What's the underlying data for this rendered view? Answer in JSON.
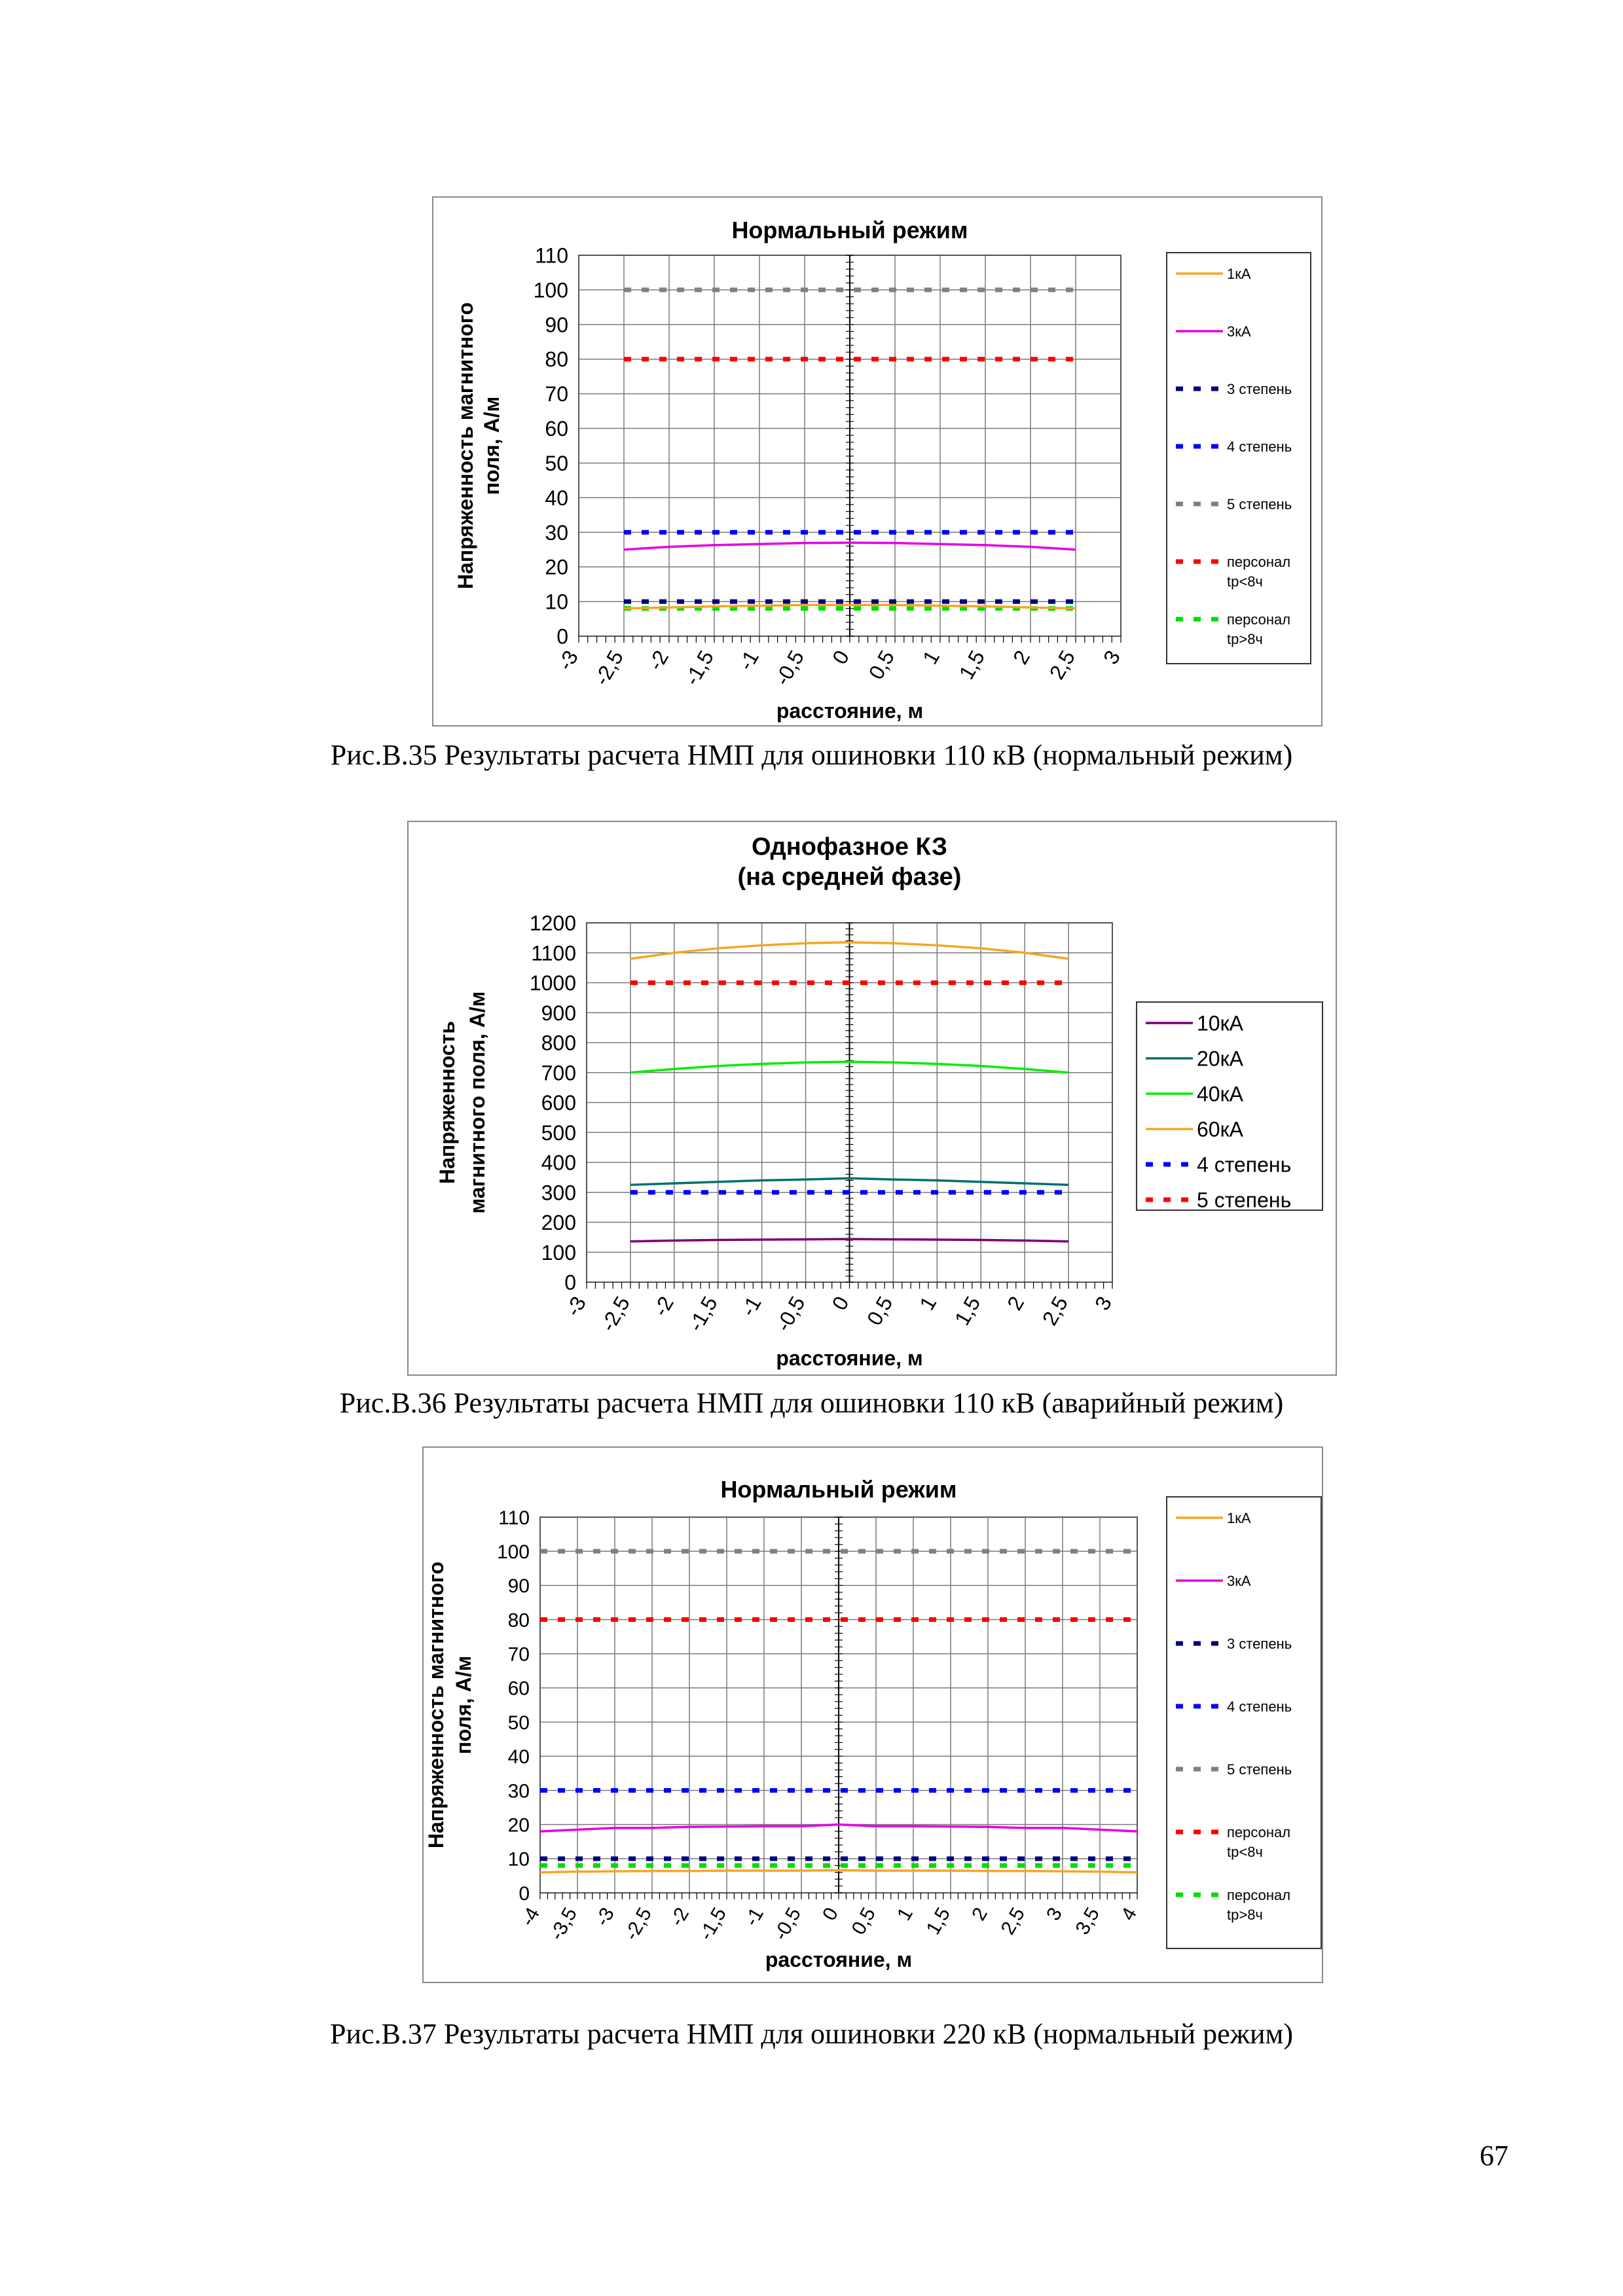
{
  "captions": [
    "Рис.В.35 Результаты расчета НМП для ошиновки 110 кВ (нормальный режим)",
    "Рис.В.36 Результаты расчета НМП для ошиновки 110 кВ (аварийный режим)",
    "Рис.В.37 Результаты расчета НМП для ошиновки 220 кВ (нормальный режим)"
  ],
  "page_number": "67",
  "chart_data": [
    {
      "type": "line",
      "title": [
        "Нормальный режим"
      ],
      "xlabel": "расстояние, м",
      "ylabel": [
        "Напряженность магнитного",
        "поля, А/м"
      ],
      "xlim": [
        -3,
        3
      ],
      "ylim": [
        0,
        110
      ],
      "x_ticks": [
        "-3",
        "-2,5",
        "-2",
        "-1,5",
        "-1",
        "-0,5",
        "0",
        "0,5",
        "1",
        "1,5",
        "2",
        "2,5",
        "3"
      ],
      "y_ticks": [
        "0",
        "10",
        "20",
        "30",
        "40",
        "50",
        "60",
        "70",
        "80",
        "90",
        "100",
        "110"
      ],
      "grid": true,
      "legend": "right",
      "series": [
        {
          "name": "1кА",
          "color": "#f5a623",
          "dash": false,
          "x": [
            -2.5,
            -2,
            -1.5,
            -1,
            -0.5,
            0,
            0.5,
            1,
            1.5,
            2,
            2.5
          ],
          "values": [
            8,
            8.3,
            8.6,
            8.8,
            9,
            9,
            9,
            8.8,
            8.6,
            8.3,
            8
          ]
        },
        {
          "name": "3кА",
          "color": "#e600e6",
          "dash": false,
          "x": [
            -2.5,
            -2,
            -1.5,
            -1,
            -0.5,
            0,
            0.5,
            1,
            1.5,
            2,
            2.5
          ],
          "values": [
            25,
            25.8,
            26.3,
            26.6,
            26.9,
            27,
            26.9,
            26.6,
            26.3,
            25.8,
            25
          ]
        },
        {
          "name": "3 степень",
          "color": "#00007a",
          "dash": true,
          "x": [
            -2.5,
            2.5
          ],
          "values": [
            10,
            10
          ]
        },
        {
          "name": "4 степень",
          "color": "#0000ff",
          "dash": true,
          "x": [
            -2.5,
            2.5
          ],
          "values": [
            30,
            30
          ]
        },
        {
          "name": "5 степень",
          "color": "#808080",
          "dash": true,
          "x": [
            -2.5,
            2.5
          ],
          "values": [
            100,
            100
          ]
        },
        {
          "name": "персонал tр<8ч",
          "color": "#ff0000",
          "dash": true,
          "x": [
            -2.5,
            2.5
          ],
          "values": [
            80,
            80
          ]
        },
        {
          "name": "персонал tр>8ч",
          "color": "#00dd00",
          "dash": true,
          "x": [
            -2.5,
            2.5
          ],
          "values": [
            8,
            8
          ]
        }
      ]
    },
    {
      "type": "line",
      "title": [
        "Однофазное КЗ",
        "(на средней фазе)"
      ],
      "xlabel": "расстояние, м",
      "ylabel": [
        "Напряженность",
        "магнитного поля, А/м"
      ],
      "xlim": [
        -3,
        3
      ],
      "ylim": [
        0,
        1200
      ],
      "x_ticks": [
        "-3",
        "-2,5",
        "-2",
        "-1,5",
        "-1",
        "-0,5",
        "0",
        "0,5",
        "1",
        "1,5",
        "2",
        "2,5",
        "3"
      ],
      "y_ticks": [
        "0",
        "100",
        "200",
        "300",
        "400",
        "500",
        "600",
        "700",
        "800",
        "900",
        "1000",
        "1100",
        "1200"
      ],
      "grid": true,
      "legend": "right",
      "series": [
        {
          "name": "10кА",
          "color": "#7a007a",
          "dash": false,
          "x": [
            -2.5,
            -2,
            -1.5,
            -1,
            -0.5,
            0,
            0.5,
            1,
            1.5,
            2,
            2.5
          ],
          "values": [
            136,
            139,
            141,
            142,
            143,
            144,
            143,
            142,
            141,
            139,
            136
          ]
        },
        {
          "name": "20кА",
          "color": "#007070",
          "dash": false,
          "x": [
            -2.5,
            -2,
            -1.5,
            -1,
            -0.5,
            0,
            0.5,
            1,
            1.5,
            2,
            2.5
          ],
          "values": [
            325,
            330,
            335,
            340,
            343,
            347,
            343,
            340,
            335,
            330,
            325
          ]
        },
        {
          "name": "40кА",
          "color": "#00ee00",
          "dash": false,
          "x": [
            -2.5,
            -2,
            -1.5,
            -1,
            -0.5,
            0,
            0.5,
            1,
            1.5,
            2,
            2.5
          ],
          "values": [
            700,
            712,
            722,
            729,
            734,
            736,
            734,
            729,
            722,
            712,
            700
          ]
        },
        {
          "name": "60кА",
          "color": "#f5a623",
          "dash": false,
          "x": [
            -2.5,
            -2,
            -1.5,
            -1,
            -0.5,
            0,
            0.5,
            1,
            1.5,
            2,
            2.5
          ],
          "values": [
            1080,
            1100,
            1115,
            1125,
            1132,
            1135,
            1132,
            1125,
            1115,
            1100,
            1080
          ]
        },
        {
          "name": "4 степень",
          "color": "#0000ff",
          "dash": true,
          "x": [
            -2.5,
            2.5
          ],
          "values": [
            300,
            300
          ]
        },
        {
          "name": "5 степень",
          "color": "#ff0000",
          "dash": true,
          "x": [
            -2.5,
            2.5
          ],
          "values": [
            1000,
            1000
          ]
        }
      ]
    },
    {
      "type": "line",
      "title": [
        "Нормальный режим"
      ],
      "xlabel": "расстояние, м",
      "ylabel": [
        "Напряженность магнитного",
        "поля, А/м"
      ],
      "xlim": [
        -4,
        4
      ],
      "ylim": [
        0,
        110
      ],
      "x_ticks": [
        "-4",
        "-3,5",
        "-3",
        "-2,5",
        "-2",
        "-1,5",
        "-1",
        "-0,5",
        "0",
        "0,5",
        "1",
        "1,5",
        "2",
        "2,5",
        "3",
        "3,5",
        "4"
      ],
      "y_ticks": [
        "0",
        "10",
        "20",
        "30",
        "40",
        "50",
        "60",
        "70",
        "80",
        "90",
        "100",
        "110"
      ],
      "grid": true,
      "legend": "right",
      "series": [
        {
          "name": "1кА",
          "color": "#f5a623",
          "dash": false,
          "x": [
            -4,
            -3.5,
            -3,
            -2.5,
            -2,
            -1.5,
            -1,
            -0.5,
            0,
            0.5,
            1,
            1.5,
            2,
            2.5,
            3,
            3.5,
            4
          ],
          "values": [
            6,
            6.2,
            6.3,
            6.4,
            6.4,
            6.5,
            6.5,
            6.5,
            6.6,
            6.5,
            6.5,
            6.5,
            6.4,
            6.4,
            6.3,
            6.2,
            6
          ]
        },
        {
          "name": "3кА",
          "color": "#e600e6",
          "dash": false,
          "x": [
            -4,
            -3.5,
            -3,
            -2.5,
            -2,
            -1.5,
            -1,
            -0.5,
            0,
            0.5,
            1,
            1.5,
            2,
            2.5,
            3,
            3.5,
            4
          ],
          "values": [
            18,
            18.5,
            19,
            19,
            19.3,
            19.4,
            19.5,
            19.5,
            20,
            19.5,
            19.5,
            19.4,
            19.3,
            19,
            19,
            18.5,
            18
          ]
        },
        {
          "name": "3 степень",
          "color": "#00007a",
          "dash": true,
          "x": [
            -4,
            4
          ],
          "values": [
            10,
            10
          ]
        },
        {
          "name": "4 степень",
          "color": "#0000ff",
          "dash": true,
          "x": [
            -4,
            4
          ],
          "values": [
            30,
            30
          ]
        },
        {
          "name": "5 степень",
          "color": "#808080",
          "dash": true,
          "x": [
            -4,
            4
          ],
          "values": [
            100,
            100
          ]
        },
        {
          "name": "персонал tр<8ч",
          "color": "#ff0000",
          "dash": true,
          "x": [
            -4,
            4
          ],
          "values": [
            80,
            80
          ]
        },
        {
          "name": "персонал tр>8ч",
          "color": "#00dd00",
          "dash": true,
          "x": [
            -4,
            4
          ],
          "values": [
            8,
            8
          ]
        }
      ]
    }
  ]
}
